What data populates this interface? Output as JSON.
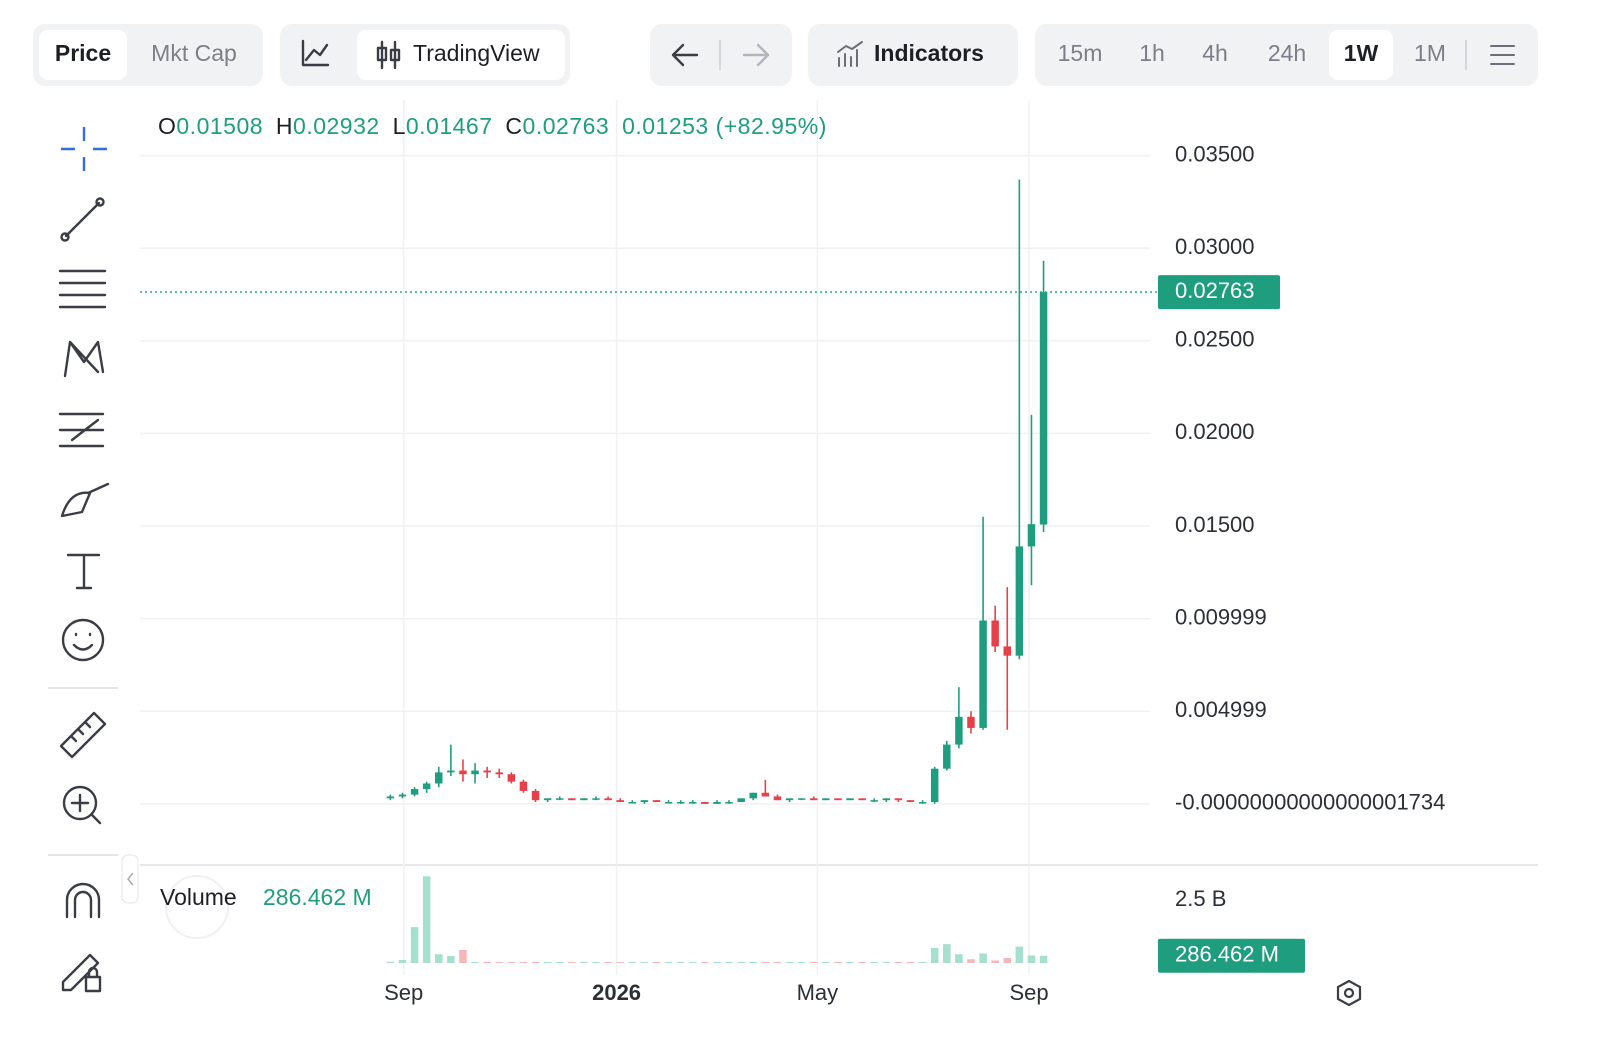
{
  "toolbar": {
    "tabs": [
      "Price",
      "Mkt Cap"
    ],
    "active_tab": 0,
    "chart_source": "TradingView",
    "indicators": "Indicators",
    "intervals": [
      "15m",
      "1h",
      "4h",
      "24h",
      "1W",
      "1M"
    ],
    "active_interval": 4
  },
  "chart_data": {
    "type": "candlestick",
    "legend_keys": [
      "O",
      "H",
      "L",
      "C"
    ],
    "change_label": "0.01253 (+82.95%)",
    "up_color": "#1f9e7f",
    "down_color": "#e8404b",
    "x": [
      0,
      1,
      2,
      3,
      4,
      5,
      6,
      7,
      8,
      9,
      10,
      11,
      12,
      13,
      14,
      15,
      16,
      17,
      18,
      19,
      20,
      21,
      22,
      23,
      24,
      25,
      26,
      27,
      28,
      29,
      30,
      31,
      32,
      33,
      34,
      35,
      36,
      37,
      38,
      39,
      40,
      41,
      42,
      43,
      44,
      45,
      46,
      47,
      48,
      49,
      50,
      51,
      52,
      53,
      54
    ],
    "open": [
      0.0003,
      0.0004,
      0.0005,
      0.0008,
      0.0011,
      0.0017,
      0.0018,
      0.0016,
      0.0018,
      0.0017,
      0.0016,
      0.0012,
      0.0007,
      0.0002,
      0.0003,
      0.0003,
      0.0002,
      0.0003,
      0.0003,
      0.0002,
      0.0001,
      0.0001,
      0.0002,
      0.0001,
      0.0001,
      0.0001,
      0.0001,
      0,
      0.0001,
      0.0001,
      0.0003,
      0.0006,
      0.0004,
      0.0002,
      0.0003,
      0.0003,
      0.0002,
      0.0003,
      0.0002,
      0.0003,
      0.0002,
      0.0002,
      0.0003,
      0.0002,
      0.0001,
      0.0001,
      0.0019,
      0.0032,
      0.0047,
      0.0041,
      0.0099,
      0.0085,
      0.008,
      0.0139,
      0.01508
    ],
    "high": [
      0.0005,
      0.0006,
      0.0009,
      0.0012,
      0.002,
      0.0032,
      0.0024,
      0.0022,
      0.002,
      0.0019,
      0.0017,
      0.0013,
      0.0008,
      0.0003,
      0.0004,
      0.0003,
      0.0003,
      0.0004,
      0.0004,
      0.0003,
      0.0002,
      0.0002,
      0.0002,
      0.0002,
      0.0002,
      0.0002,
      0.0001,
      0.0002,
      0.0002,
      0.0003,
      0.0006,
      0.0013,
      0.0005,
      0.0003,
      0.0003,
      0.0004,
      0.0003,
      0.0003,
      0.0003,
      0.0003,
      0.0003,
      0.0003,
      0.0003,
      0.0002,
      0.0002,
      0.002,
      0.0034,
      0.0063,
      0.005,
      0.0155,
      0.0107,
      0.0117,
      0.0337,
      0.021,
      0.02932
    ],
    "low": [
      0.0002,
      0.0003,
      0.0004,
      0.0006,
      0.0009,
      0.0015,
      0.0012,
      0.0011,
      0.0014,
      0.0014,
      0.0011,
      0.0006,
      0.0001,
      0.0001,
      0.0002,
      0.0002,
      0.0002,
      0.0002,
      0.0002,
      0.0001,
      0.0001,
      0,
      0.0001,
      0.0001,
      0,
      0,
      0,
      0,
      0,
      0.0001,
      0.0002,
      0.0004,
      0.0002,
      0.0001,
      0.0002,
      0.0002,
      0.0002,
      0.0002,
      0.0002,
      0.0002,
      0.0001,
      0.0001,
      0.0001,
      0.0001,
      0,
      0,
      0.0018,
      0.003,
      0.0038,
      0.004,
      0.0082,
      0.004,
      0.0078,
      0.0118,
      0.01467
    ],
    "close": [
      0.0004,
      0.0005,
      0.0008,
      0.0011,
      0.0017,
      0.0018,
      0.0016,
      0.0018,
      0.0017,
      0.0016,
      0.0012,
      0.0007,
      0.0002,
      0.0003,
      0.0003,
      0.0002,
      0.0003,
      0.0003,
      0.0002,
      0.0001,
      0.0001,
      0.0002,
      0.0001,
      0.0001,
      0.0001,
      0.0001,
      0,
      0.0001,
      0.0001,
      0.0003,
      0.0006,
      0.0004,
      0.0002,
      0.0003,
      0.0003,
      0.0002,
      0.0003,
      0.0002,
      0.0003,
      0.0002,
      0.0002,
      0.0003,
      0.0002,
      0.0001,
      0.0001,
      0.0019,
      0.0032,
      0.0047,
      0.0041,
      0.0099,
      0.0085,
      0.008,
      0.0139,
      0.0151,
      0.02763
    ],
    "volume": {
      "name": "Volume",
      "last_label": "286.462 M",
      "up_color": "#a5dfcd",
      "down_color": "#f6b7bb",
      "values": [
        50000000,
        120000000,
        1430000000,
        3450000000,
        350000000,
        280000000,
        520000000,
        40000000,
        40000000,
        40000000,
        40000000,
        40000000,
        40000000,
        40000000,
        40000000,
        40000000,
        40000000,
        40000000,
        40000000,
        40000000,
        40000000,
        40000000,
        40000000,
        40000000,
        40000000,
        40000000,
        40000000,
        40000000,
        40000000,
        40000000,
        40000000,
        40000000,
        40000000,
        40000000,
        40000000,
        40000000,
        40000000,
        40000000,
        40000000,
        40000000,
        40000000,
        40000000,
        40000000,
        40000000,
        40000000,
        600000000,
        750000000,
        350000000,
        150000000,
        380000000,
        100000000,
        200000000,
        650000000,
        300000000,
        286462000
      ],
      "ylim": [
        0,
        3900000000
      ],
      "yticks": [
        {
          "value": 2500000000,
          "label": "2.5 B"
        }
      ]
    },
    "xlim": [
      -20.7,
      62.8
    ],
    "xticks": [
      {
        "value": 1.1,
        "label": "Sep"
      },
      {
        "value": 18.7,
        "label": "2026"
      },
      {
        "value": 35.3,
        "label": "May"
      },
      {
        "value": 52.8,
        "label": "Sep"
      }
    ],
    "ylim": [
      -0.0033,
      0.038
    ],
    "yticks": [
      {
        "value": 0.035,
        "label": "0.03500"
      },
      {
        "value": 0.03,
        "label": "0.03000"
      },
      {
        "value": 0.025,
        "label": "0.02500"
      },
      {
        "value": 0.02,
        "label": "0.02000"
      },
      {
        "value": 0.015,
        "label": "0.01500"
      },
      0.009999,
      0.004999,
      {
        "value": -1.734e-17,
        "label": "-0.00000000000000001734"
      }
    ],
    "grid": true
  }
}
